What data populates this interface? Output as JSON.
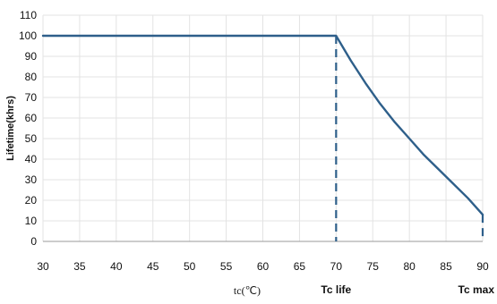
{
  "chart_data": {
    "type": "line",
    "xlabel": "tc(℃)",
    "ylabel": "Lifetime(khrs)",
    "xlim": [
      30,
      90
    ],
    "ylim": [
      0,
      110
    ],
    "xticks": [
      30,
      35,
      40,
      45,
      50,
      55,
      60,
      65,
      70,
      75,
      80,
      85,
      90
    ],
    "yticks": [
      0,
      10,
      20,
      30,
      40,
      50,
      60,
      70,
      80,
      90,
      100,
      110
    ],
    "grid": true,
    "series": [
      {
        "color": "#2e5f8a",
        "x": [
          30,
          70,
          72,
          74,
          76,
          78,
          80,
          82,
          84,
          86,
          88,
          90
        ],
        "y": [
          100,
          100,
          88,
          77,
          67,
          58,
          50,
          42,
          35,
          28,
          21,
          13
        ]
      }
    ],
    "markers": [
      {
        "x": 70,
        "label": "Tc life",
        "style": "dashed"
      },
      {
        "x": 90,
        "label": "Tc max",
        "style": "dashed"
      }
    ]
  }
}
